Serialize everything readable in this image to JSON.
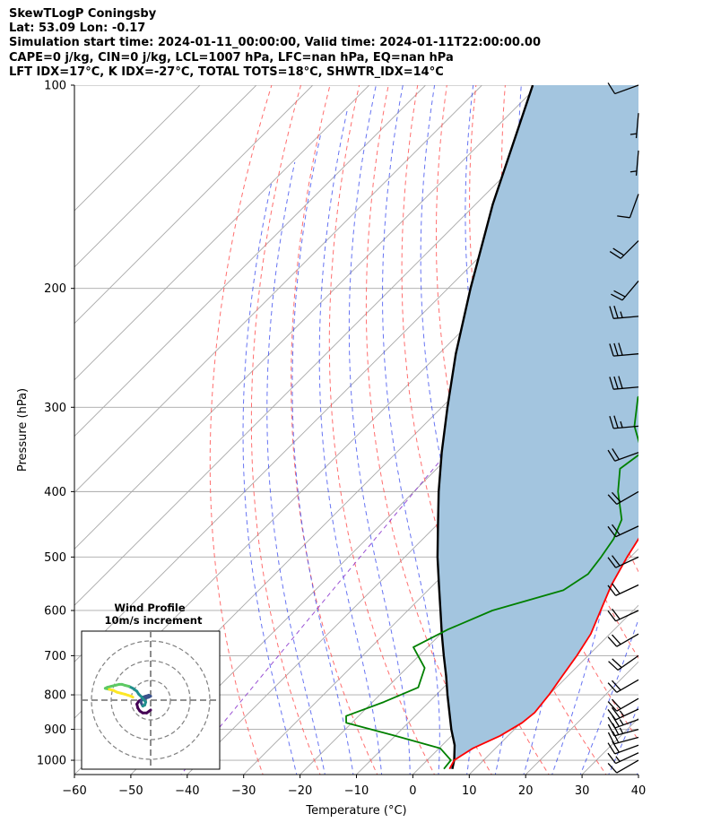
{
  "header": {
    "title": "SkewTLogP Coningsby",
    "location": "Lat: 53.09   Lon: -0.17",
    "times": "Simulation start time: 2024-01-11_00:00:00, Valid time: 2024-01-11T22:00:00.00",
    "indices1": "CAPE=0 j/kg, CIN=0 j/kg, LCL=1007 hPa, LFC=nan hPa, EQ=nan hPa",
    "indices2": "LFT IDX=17°C, K IDX=-27°C, TOTAL TOTS=18°C, SHWTR_IDX=14°C"
  },
  "chart_data": {
    "type": "skew-t log-p",
    "xlabel": "Temperature (°C)",
    "ylabel": "Pressure (hPa)",
    "xlim": [
      -60,
      40
    ],
    "ylim": [
      1050,
      100
    ],
    "x_ticks": [
      -60,
      -50,
      -40,
      -30,
      -20,
      -10,
      0,
      10,
      20,
      30,
      40
    ],
    "y_ticks": [
      1000,
      900,
      800,
      700,
      600,
      500,
      400,
      300,
      200,
      100
    ],
    "grid": true,
    "colors": {
      "temperature": "#ff0000",
      "dewpoint": "#008000",
      "parcel": "#000000",
      "shade": "#a3c5df",
      "dry_adiabats": "#ff5555",
      "moist_adiabats": "#3344ee",
      "mixing_ratio": "#8833cc",
      "isotherms": "#a8a8a8",
      "barbs": "#000000"
    },
    "series": [
      {
        "name": "Temperature",
        "points": [
          [
            1030,
            5.5
          ],
          [
            1000,
            4.8
          ],
          [
            985,
            5.2
          ],
          [
            960,
            6.0
          ],
          [
            920,
            8.6
          ],
          [
            880,
            10.2
          ],
          [
            850,
            10.6
          ],
          [
            800,
            10.0
          ],
          [
            750,
            9.0
          ],
          [
            700,
            8.0
          ],
          [
            650,
            6.6
          ],
          [
            600,
            4.2
          ],
          [
            550,
            1.6
          ],
          [
            500,
            -0.6
          ],
          [
            450,
            -2.6
          ],
          [
            400,
            -5.0
          ],
          [
            350,
            -9.2
          ],
          [
            300,
            -13.6
          ],
          [
            270,
            -16.4
          ],
          [
            240,
            -17.6
          ],
          [
            220,
            -17.6
          ],
          [
            210,
            -17.6
          ],
          [
            195,
            -18.2
          ],
          [
            185,
            -17.2
          ],
          [
            175,
            -12.6
          ],
          [
            165,
            -8.5
          ],
          [
            155,
            -6.0
          ],
          [
            140,
            -2.8
          ],
          [
            125,
            1.4
          ],
          [
            115,
            3.8
          ],
          [
            100,
            4.6
          ]
        ]
      },
      {
        "name": "Dewpoint",
        "points": [
          [
            1030,
            4.5
          ],
          [
            1000,
            4.2
          ],
          [
            960,
            0.2
          ],
          [
            920,
            -10.0
          ],
          [
            880,
            -21.0
          ],
          [
            860,
            -22.2
          ],
          [
            820,
            -18.0
          ],
          [
            780,
            -14.5
          ],
          [
            730,
            -16.8
          ],
          [
            680,
            -22.5
          ],
          [
            640,
            -19.5
          ],
          [
            600,
            -15.0
          ],
          [
            560,
            -6.0
          ],
          [
            530,
            -4.5
          ],
          [
            500,
            -5.2
          ],
          [
            470,
            -6.2
          ],
          [
            440,
            -8.2
          ],
          [
            400,
            -13.8
          ],
          [
            370,
            -17.5
          ],
          [
            350,
            -16.5
          ],
          [
            320,
            -22.5
          ],
          [
            290,
            -27.0
          ],
          [
            270,
            -26.0
          ],
          [
            250,
            -26.5
          ],
          [
            230,
            -25.0
          ],
          [
            215,
            -20.0
          ],
          [
            200,
            -19.5
          ],
          [
            190,
            -18.0
          ],
          [
            180,
            -14.5
          ],
          [
            170,
            -14.0
          ],
          [
            160,
            -14.5
          ],
          [
            150,
            -13.5
          ],
          [
            130,
            -9.0
          ],
          [
            115,
            -6.0
          ],
          [
            100,
            -3.5
          ]
        ]
      },
      {
        "name": "Parcel",
        "points": [
          [
            1030,
            6.0
          ],
          [
            1000,
            4.8
          ],
          [
            950,
            2.2
          ],
          [
            900,
            -1.2
          ],
          [
            850,
            -4.5
          ],
          [
            800,
            -8.0
          ],
          [
            750,
            -11.6
          ],
          [
            700,
            -15.6
          ],
          [
            650,
            -19.8
          ],
          [
            600,
            -24.2
          ],
          [
            550,
            -29.0
          ],
          [
            500,
            -34.2
          ],
          [
            450,
            -39.6
          ],
          [
            400,
            -45.6
          ],
          [
            350,
            -52.0
          ],
          [
            300,
            -59.0
          ],
          [
            250,
            -67.0
          ],
          [
            200,
            -76.0
          ],
          [
            150,
            -87.0
          ],
          [
            100,
            -101.0
          ]
        ]
      }
    ],
    "wind_barbs": [
      {
        "p": 1000,
        "speed_kt": 10,
        "dir_deg": 240
      },
      {
        "p": 975,
        "speed_kt": 15,
        "dir_deg": 245
      },
      {
        "p": 950,
        "speed_kt": 20,
        "dir_deg": 250
      },
      {
        "p": 925,
        "speed_kt": 20,
        "dir_deg": 255
      },
      {
        "p": 900,
        "speed_kt": 25,
        "dir_deg": 255
      },
      {
        "p": 870,
        "speed_kt": 25,
        "dir_deg": 250
      },
      {
        "p": 840,
        "speed_kt": 25,
        "dir_deg": 245
      },
      {
        "p": 810,
        "speed_kt": 20,
        "dir_deg": 240
      },
      {
        "p": 760,
        "speed_kt": 20,
        "dir_deg": 240
      },
      {
        "p": 700,
        "speed_kt": 20,
        "dir_deg": 235
      },
      {
        "p": 650,
        "speed_kt": 20,
        "dir_deg": 240
      },
      {
        "p": 600,
        "speed_kt": 20,
        "dir_deg": 245
      },
      {
        "p": 550,
        "speed_kt": 20,
        "dir_deg": 245
      },
      {
        "p": 500,
        "speed_kt": 20,
        "dir_deg": 245
      },
      {
        "p": 450,
        "speed_kt": 20,
        "dir_deg": 245
      },
      {
        "p": 400,
        "speed_kt": 20,
        "dir_deg": 240
      },
      {
        "p": 350,
        "speed_kt": 20,
        "dir_deg": 250
      },
      {
        "p": 320,
        "speed_kt": 25,
        "dir_deg": 265
      },
      {
        "p": 280,
        "speed_kt": 30,
        "dir_deg": 265
      },
      {
        "p": 250,
        "speed_kt": 30,
        "dir_deg": 265
      },
      {
        "p": 220,
        "speed_kt": 25,
        "dir_deg": 265
      },
      {
        "p": 195,
        "speed_kt": 20,
        "dir_deg": 220
      },
      {
        "p": 170,
        "speed_kt": 20,
        "dir_deg": 225
      },
      {
        "p": 145,
        "speed_kt": 10,
        "dir_deg": 200
      },
      {
        "p": 125,
        "speed_kt": 5,
        "dir_deg": 185
      },
      {
        "p": 110,
        "speed_kt": 5,
        "dir_deg": 185
      },
      {
        "p": 100,
        "speed_kt": 10,
        "dir_deg": 250
      }
    ],
    "hodograph": {
      "title": "Wind Profile",
      "subtitle": "10m/s increment",
      "rings_ms": [
        10,
        20,
        30
      ],
      "range_ms": 35,
      "colors": [
        "#440154",
        "#3b528b",
        "#21908d",
        "#5dc963",
        "#fde725"
      ],
      "points": [
        [
          0,
          -5
        ],
        [
          -2,
          -6.5
        ],
        [
          -4,
          -6.5
        ],
        [
          -5.5,
          -5.5
        ],
        [
          -6.5,
          -4
        ],
        [
          -7,
          -2
        ],
        [
          -6,
          -0.5
        ],
        [
          -4,
          0.5
        ],
        [
          -2.5,
          1
        ],
        [
          -1,
          1.5
        ],
        [
          0,
          2
        ],
        [
          -1,
          2.5
        ],
        [
          -2.5,
          2
        ],
        [
          -4,
          1.5
        ],
        [
          -4.5,
          0
        ],
        [
          -5,
          -1
        ],
        [
          -4,
          -3
        ],
        [
          -3,
          -2.5
        ],
        [
          -2.5,
          -1
        ],
        [
          -4.5,
          1.5
        ],
        [
          -6,
          3
        ],
        [
          -7,
          4.5
        ],
        [
          -9,
          6
        ],
        [
          -11,
          7
        ],
        [
          -13,
          7.5
        ],
        [
          -14.5,
          8
        ],
        [
          -16,
          8
        ],
        [
          -18,
          7.5
        ],
        [
          -20,
          7
        ],
        [
          -22,
          6.5
        ],
        [
          -23,
          6
        ],
        [
          -21,
          5.5
        ],
        [
          -19,
          5
        ],
        [
          -17,
          4
        ],
        [
          -15,
          3.5
        ],
        [
          -13,
          3
        ],
        [
          -11.5,
          2.5
        ],
        [
          -10,
          2
        ],
        [
          -9,
          1.5
        ]
      ]
    }
  }
}
